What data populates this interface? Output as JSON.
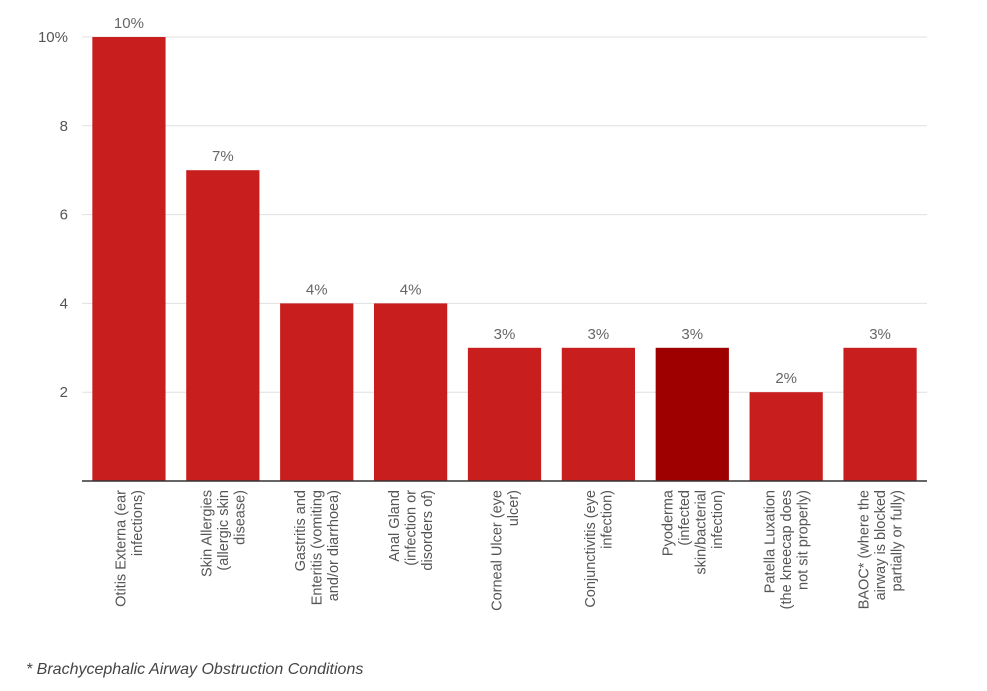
{
  "chart_data": {
    "type": "bar",
    "categories": [
      [
        "Otitis Externa (ear",
        "infections)"
      ],
      [
        "Skin Allergies",
        "(allergic skin",
        "disease)"
      ],
      [
        "Gastritis and",
        "Enteritis (vomiting",
        "and/or diarrhoea)"
      ],
      [
        "Anal Gland",
        "(infection or",
        "disorders of)"
      ],
      [
        "Corneal Ulcer (eye",
        "ulcer)"
      ],
      [
        "Conjunctivitis (eye",
        "infection)"
      ],
      [
        "Pyoderma",
        "(infected",
        "skin/bacterial",
        "infection)"
      ],
      [
        "Patella Luxation",
        "(the kneecap does",
        "not sit properly)"
      ],
      [
        "BAOC* (where the",
        "airway is blocked",
        "partially or fully)"
      ]
    ],
    "values": [
      10,
      7,
      4,
      4,
      3,
      3,
      3,
      2,
      3
    ],
    "data_labels": [
      "10%",
      "7%",
      "4%",
      "4%",
      "3%",
      "3%",
      "3%",
      "2%",
      "3%"
    ],
    "y_ticks": [
      {
        "value": 2,
        "label": "2"
      },
      {
        "value": 4,
        "label": "4"
      },
      {
        "value": 6,
        "label": "6"
      },
      {
        "value": 8,
        "label": "8"
      },
      {
        "value": 10,
        "label": "10%"
      }
    ],
    "ylim": [
      0,
      10
    ],
    "grid": true,
    "bar_color": "#C81E1E",
    "highlight_index": 6,
    "highlight_color": "#9E0000"
  },
  "footnote": "* Brachycephalic Airway Obstruction Conditions"
}
